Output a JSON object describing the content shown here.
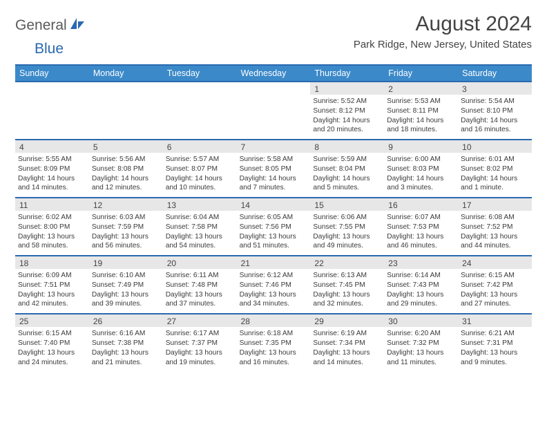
{
  "logo": {
    "text1": "General",
    "text2": "Blue"
  },
  "header": {
    "month_title": "August 2024",
    "location": "Park Ridge, New Jersey, United States"
  },
  "colors": {
    "header_bg": "#3b89c9",
    "header_border": "#2969b0",
    "daynum_bg": "#e7e7e7",
    "text": "#3a3a3a",
    "logo_gray": "#5a5a5a",
    "logo_blue": "#2969b0"
  },
  "typography": {
    "month_title_fontsize": 30,
    "location_fontsize": 15,
    "dayheader_fontsize": 12.5,
    "cell_fontsize": 10.2,
    "daynum_fontsize": 12
  },
  "day_names": [
    "Sunday",
    "Monday",
    "Tuesday",
    "Wednesday",
    "Thursday",
    "Friday",
    "Saturday"
  ],
  "weeks": [
    [
      {
        "blank": true
      },
      {
        "blank": true
      },
      {
        "blank": true
      },
      {
        "blank": true
      },
      {
        "day": "1",
        "sunrise": "Sunrise: 5:52 AM",
        "sunset": "Sunset: 8:12 PM",
        "dl1": "Daylight: 14 hours",
        "dl2": "and 20 minutes."
      },
      {
        "day": "2",
        "sunrise": "Sunrise: 5:53 AM",
        "sunset": "Sunset: 8:11 PM",
        "dl1": "Daylight: 14 hours",
        "dl2": "and 18 minutes."
      },
      {
        "day": "3",
        "sunrise": "Sunrise: 5:54 AM",
        "sunset": "Sunset: 8:10 PM",
        "dl1": "Daylight: 14 hours",
        "dl2": "and 16 minutes."
      }
    ],
    [
      {
        "day": "4",
        "sunrise": "Sunrise: 5:55 AM",
        "sunset": "Sunset: 8:09 PM",
        "dl1": "Daylight: 14 hours",
        "dl2": "and 14 minutes."
      },
      {
        "day": "5",
        "sunrise": "Sunrise: 5:56 AM",
        "sunset": "Sunset: 8:08 PM",
        "dl1": "Daylight: 14 hours",
        "dl2": "and 12 minutes."
      },
      {
        "day": "6",
        "sunrise": "Sunrise: 5:57 AM",
        "sunset": "Sunset: 8:07 PM",
        "dl1": "Daylight: 14 hours",
        "dl2": "and 10 minutes."
      },
      {
        "day": "7",
        "sunrise": "Sunrise: 5:58 AM",
        "sunset": "Sunset: 8:05 PM",
        "dl1": "Daylight: 14 hours",
        "dl2": "and 7 minutes."
      },
      {
        "day": "8",
        "sunrise": "Sunrise: 5:59 AM",
        "sunset": "Sunset: 8:04 PM",
        "dl1": "Daylight: 14 hours",
        "dl2": "and 5 minutes."
      },
      {
        "day": "9",
        "sunrise": "Sunrise: 6:00 AM",
        "sunset": "Sunset: 8:03 PM",
        "dl1": "Daylight: 14 hours",
        "dl2": "and 3 minutes."
      },
      {
        "day": "10",
        "sunrise": "Sunrise: 6:01 AM",
        "sunset": "Sunset: 8:02 PM",
        "dl1": "Daylight: 14 hours",
        "dl2": "and 1 minute."
      }
    ],
    [
      {
        "day": "11",
        "sunrise": "Sunrise: 6:02 AM",
        "sunset": "Sunset: 8:00 PM",
        "dl1": "Daylight: 13 hours",
        "dl2": "and 58 minutes."
      },
      {
        "day": "12",
        "sunrise": "Sunrise: 6:03 AM",
        "sunset": "Sunset: 7:59 PM",
        "dl1": "Daylight: 13 hours",
        "dl2": "and 56 minutes."
      },
      {
        "day": "13",
        "sunrise": "Sunrise: 6:04 AM",
        "sunset": "Sunset: 7:58 PM",
        "dl1": "Daylight: 13 hours",
        "dl2": "and 54 minutes."
      },
      {
        "day": "14",
        "sunrise": "Sunrise: 6:05 AM",
        "sunset": "Sunset: 7:56 PM",
        "dl1": "Daylight: 13 hours",
        "dl2": "and 51 minutes."
      },
      {
        "day": "15",
        "sunrise": "Sunrise: 6:06 AM",
        "sunset": "Sunset: 7:55 PM",
        "dl1": "Daylight: 13 hours",
        "dl2": "and 49 minutes."
      },
      {
        "day": "16",
        "sunrise": "Sunrise: 6:07 AM",
        "sunset": "Sunset: 7:53 PM",
        "dl1": "Daylight: 13 hours",
        "dl2": "and 46 minutes."
      },
      {
        "day": "17",
        "sunrise": "Sunrise: 6:08 AM",
        "sunset": "Sunset: 7:52 PM",
        "dl1": "Daylight: 13 hours",
        "dl2": "and 44 minutes."
      }
    ],
    [
      {
        "day": "18",
        "sunrise": "Sunrise: 6:09 AM",
        "sunset": "Sunset: 7:51 PM",
        "dl1": "Daylight: 13 hours",
        "dl2": "and 42 minutes."
      },
      {
        "day": "19",
        "sunrise": "Sunrise: 6:10 AM",
        "sunset": "Sunset: 7:49 PM",
        "dl1": "Daylight: 13 hours",
        "dl2": "and 39 minutes."
      },
      {
        "day": "20",
        "sunrise": "Sunrise: 6:11 AM",
        "sunset": "Sunset: 7:48 PM",
        "dl1": "Daylight: 13 hours",
        "dl2": "and 37 minutes."
      },
      {
        "day": "21",
        "sunrise": "Sunrise: 6:12 AM",
        "sunset": "Sunset: 7:46 PM",
        "dl1": "Daylight: 13 hours",
        "dl2": "and 34 minutes."
      },
      {
        "day": "22",
        "sunrise": "Sunrise: 6:13 AM",
        "sunset": "Sunset: 7:45 PM",
        "dl1": "Daylight: 13 hours",
        "dl2": "and 32 minutes."
      },
      {
        "day": "23",
        "sunrise": "Sunrise: 6:14 AM",
        "sunset": "Sunset: 7:43 PM",
        "dl1": "Daylight: 13 hours",
        "dl2": "and 29 minutes."
      },
      {
        "day": "24",
        "sunrise": "Sunrise: 6:15 AM",
        "sunset": "Sunset: 7:42 PM",
        "dl1": "Daylight: 13 hours",
        "dl2": "and 27 minutes."
      }
    ],
    [
      {
        "day": "25",
        "sunrise": "Sunrise: 6:15 AM",
        "sunset": "Sunset: 7:40 PM",
        "dl1": "Daylight: 13 hours",
        "dl2": "and 24 minutes."
      },
      {
        "day": "26",
        "sunrise": "Sunrise: 6:16 AM",
        "sunset": "Sunset: 7:38 PM",
        "dl1": "Daylight: 13 hours",
        "dl2": "and 21 minutes."
      },
      {
        "day": "27",
        "sunrise": "Sunrise: 6:17 AM",
        "sunset": "Sunset: 7:37 PM",
        "dl1": "Daylight: 13 hours",
        "dl2": "and 19 minutes."
      },
      {
        "day": "28",
        "sunrise": "Sunrise: 6:18 AM",
        "sunset": "Sunset: 7:35 PM",
        "dl1": "Daylight: 13 hours",
        "dl2": "and 16 minutes."
      },
      {
        "day": "29",
        "sunrise": "Sunrise: 6:19 AM",
        "sunset": "Sunset: 7:34 PM",
        "dl1": "Daylight: 13 hours",
        "dl2": "and 14 minutes."
      },
      {
        "day": "30",
        "sunrise": "Sunrise: 6:20 AM",
        "sunset": "Sunset: 7:32 PM",
        "dl1": "Daylight: 13 hours",
        "dl2": "and 11 minutes."
      },
      {
        "day": "31",
        "sunrise": "Sunrise: 6:21 AM",
        "sunset": "Sunset: 7:31 PM",
        "dl1": "Daylight: 13 hours",
        "dl2": "and 9 minutes."
      }
    ]
  ]
}
